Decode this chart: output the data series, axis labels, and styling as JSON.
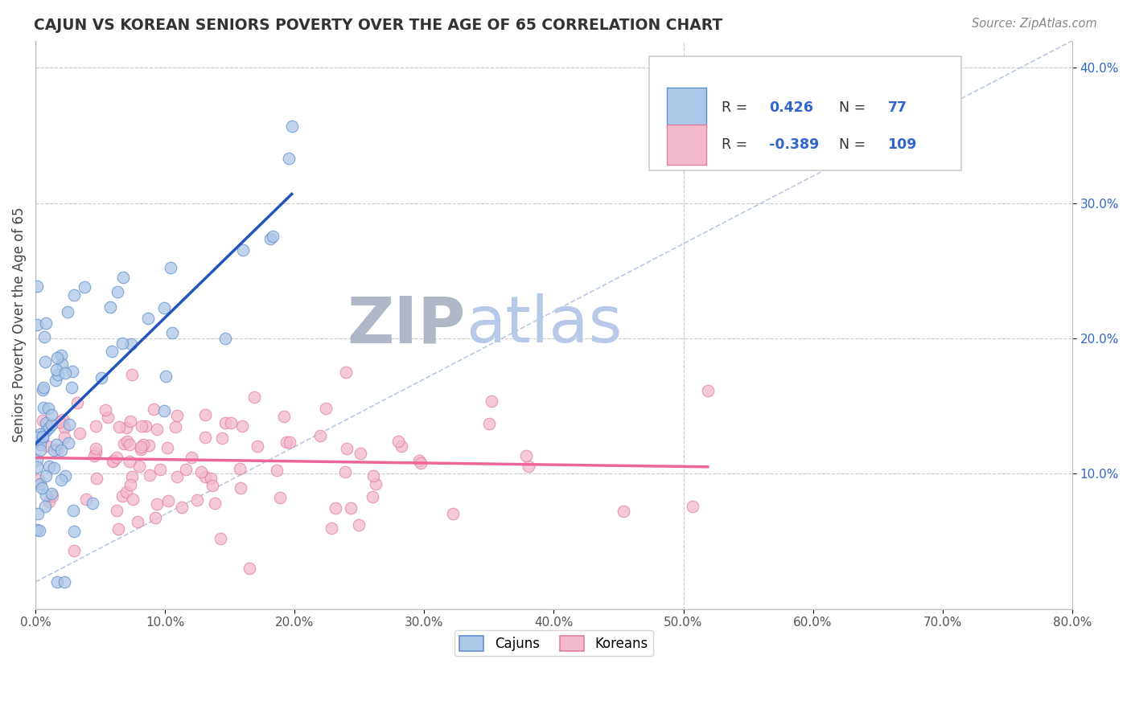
{
  "title": "CAJUN VS KOREAN SENIORS POVERTY OVER THE AGE OF 65 CORRELATION CHART",
  "source_text": "Source: ZipAtlas.com",
  "ylabel": "Seniors Poverty Over the Age of 65",
  "xlim": [
    0.0,
    0.8
  ],
  "ylim": [
    0.0,
    0.42
  ],
  "xticks": [
    0.0,
    0.1,
    0.2,
    0.3,
    0.4,
    0.5,
    0.6,
    0.7,
    0.8
  ],
  "xtick_labels": [
    "0.0%",
    "10.0%",
    "20.0%",
    "30.0%",
    "40.0%",
    "50.0%",
    "60.0%",
    "70.0%",
    "80.0%"
  ],
  "yticks_right": [
    0.1,
    0.2,
    0.3,
    0.4
  ],
  "ytick_labels_right": [
    "10.0%",
    "20.0%",
    "30.0%",
    "40.0%"
  ],
  "cajun_color": "#aec6e8",
  "korean_color": "#f4b8cc",
  "cajun_edge_color": "#6090cc",
  "korean_edge_color": "#e080a0",
  "cajun_line_color": "#2255bb",
  "korean_line_color": "#ee6699",
  "watermark_zip_color": "#b0b8c8",
  "watermark_atlas_color": "#b8c8e8",
  "background_color": "#ffffff",
  "grid_color": "#cccccc",
  "title_color": "#333333",
  "legend_text_color": "#333333",
  "legend_num_color": "#3366cc",
  "diag_line_color": "#aabbdd"
}
